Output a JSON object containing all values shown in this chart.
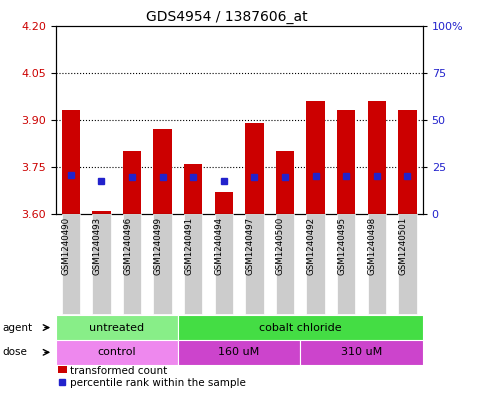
{
  "title": "GDS4954 / 1387606_at",
  "samples": [
    "GSM1240490",
    "GSM1240493",
    "GSM1240496",
    "GSM1240499",
    "GSM1240491",
    "GSM1240494",
    "GSM1240497",
    "GSM1240500",
    "GSM1240492",
    "GSM1240495",
    "GSM1240498",
    "GSM1240501"
  ],
  "bar_values": [
    3.93,
    3.61,
    3.8,
    3.87,
    3.76,
    3.67,
    3.89,
    3.8,
    3.96,
    3.93,
    3.96,
    3.93
  ],
  "bar_bottom": 3.6,
  "blue_dot_values": [
    3.725,
    3.705,
    3.718,
    3.718,
    3.718,
    3.705,
    3.718,
    3.718,
    3.72,
    3.72,
    3.722,
    3.72
  ],
  "ylim": [
    3.6,
    4.2
  ],
  "yticks_left": [
    3.6,
    3.75,
    3.9,
    4.05,
    4.2
  ],
  "yticks_right": [
    0,
    25,
    50,
    75,
    100
  ],
  "right_ylim_labels": [
    "0",
    "25",
    "50",
    "75",
    "100%"
  ],
  "hlines": [
    3.75,
    3.9,
    4.05
  ],
  "bar_color": "#cc0000",
  "blue_dot_color": "#2222cc",
  "agent_labels": [
    {
      "text": "untreated",
      "start": 0,
      "end": 3
    },
    {
      "text": "cobalt chloride",
      "start": 4,
      "end": 11
    }
  ],
  "dose_labels": [
    {
      "text": "control",
      "start": 0,
      "end": 3
    },
    {
      "text": "160 uM",
      "start": 4,
      "end": 7
    },
    {
      "text": "310 uM",
      "start": 8,
      "end": 11
    }
  ],
  "agent_color_light": "#88ee88",
  "agent_color_dark": "#44dd44",
  "dose_color_light": "#ee88ee",
  "dose_color_dark": "#cc44cc",
  "legend_red": "transformed count",
  "legend_blue": "percentile rank within the sample",
  "left_tick_color": "#cc0000",
  "right_tick_color": "#2222cc",
  "tick_label_fontsize": 8,
  "title_fontsize": 10,
  "bar_width": 0.6,
  "gray_box_color": "#cccccc",
  "plot_bg": "#ffffff",
  "spine_color": "#000000"
}
